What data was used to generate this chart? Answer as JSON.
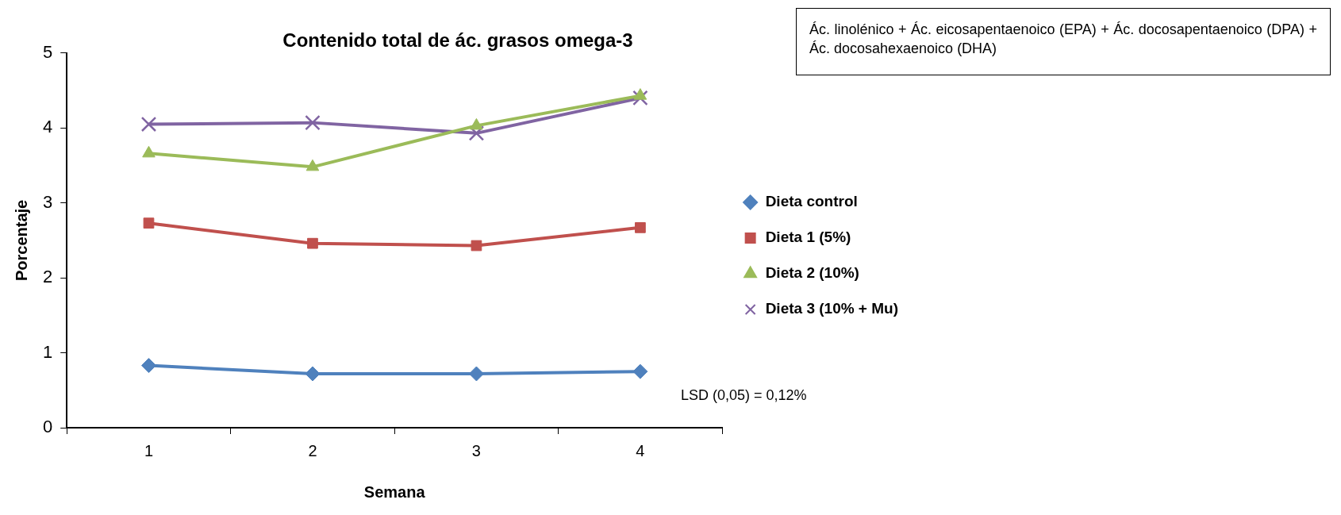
{
  "chart_data": {
    "type": "line",
    "title": "Contenido total de ác. grasos omega-3",
    "xlabel": "Semana",
    "ylabel": "Porcentaje",
    "categories": [
      "1",
      "2",
      "3",
      "4"
    ],
    "ylim": [
      0,
      5
    ],
    "yticks": [
      0,
      1,
      2,
      3,
      4,
      5
    ],
    "legend": "right",
    "line_style": "solid",
    "series": [
      {
        "name": "Dieta control",
        "color": "#4f81bd",
        "marker": "diamond",
        "values": [
          0.83,
          0.72,
          0.72,
          0.75
        ]
      },
      {
        "name": "Dieta 1 (5%)",
        "color": "#c0504d",
        "marker": "square",
        "values": [
          2.73,
          2.46,
          2.43,
          2.67
        ]
      },
      {
        "name": "Dieta 2 (10%)",
        "color": "#9bbb59",
        "marker": "triangle",
        "values": [
          3.66,
          3.48,
          4.03,
          4.43
        ]
      },
      {
        "name": "Dieta 3 (10% + Mu)",
        "color": "#8064a2",
        "marker": "cross",
        "values": [
          4.05,
          4.07,
          3.93,
          4.4
        ]
      }
    ],
    "annotations": [
      "Ác. linolénico + Ác. eicosapentaenoico (EPA) + Ác. docosapentaenoico (DPA)  + Ác. docosahexaenoico (DHA)",
      "LSD (0,05) = 0,12%"
    ]
  }
}
